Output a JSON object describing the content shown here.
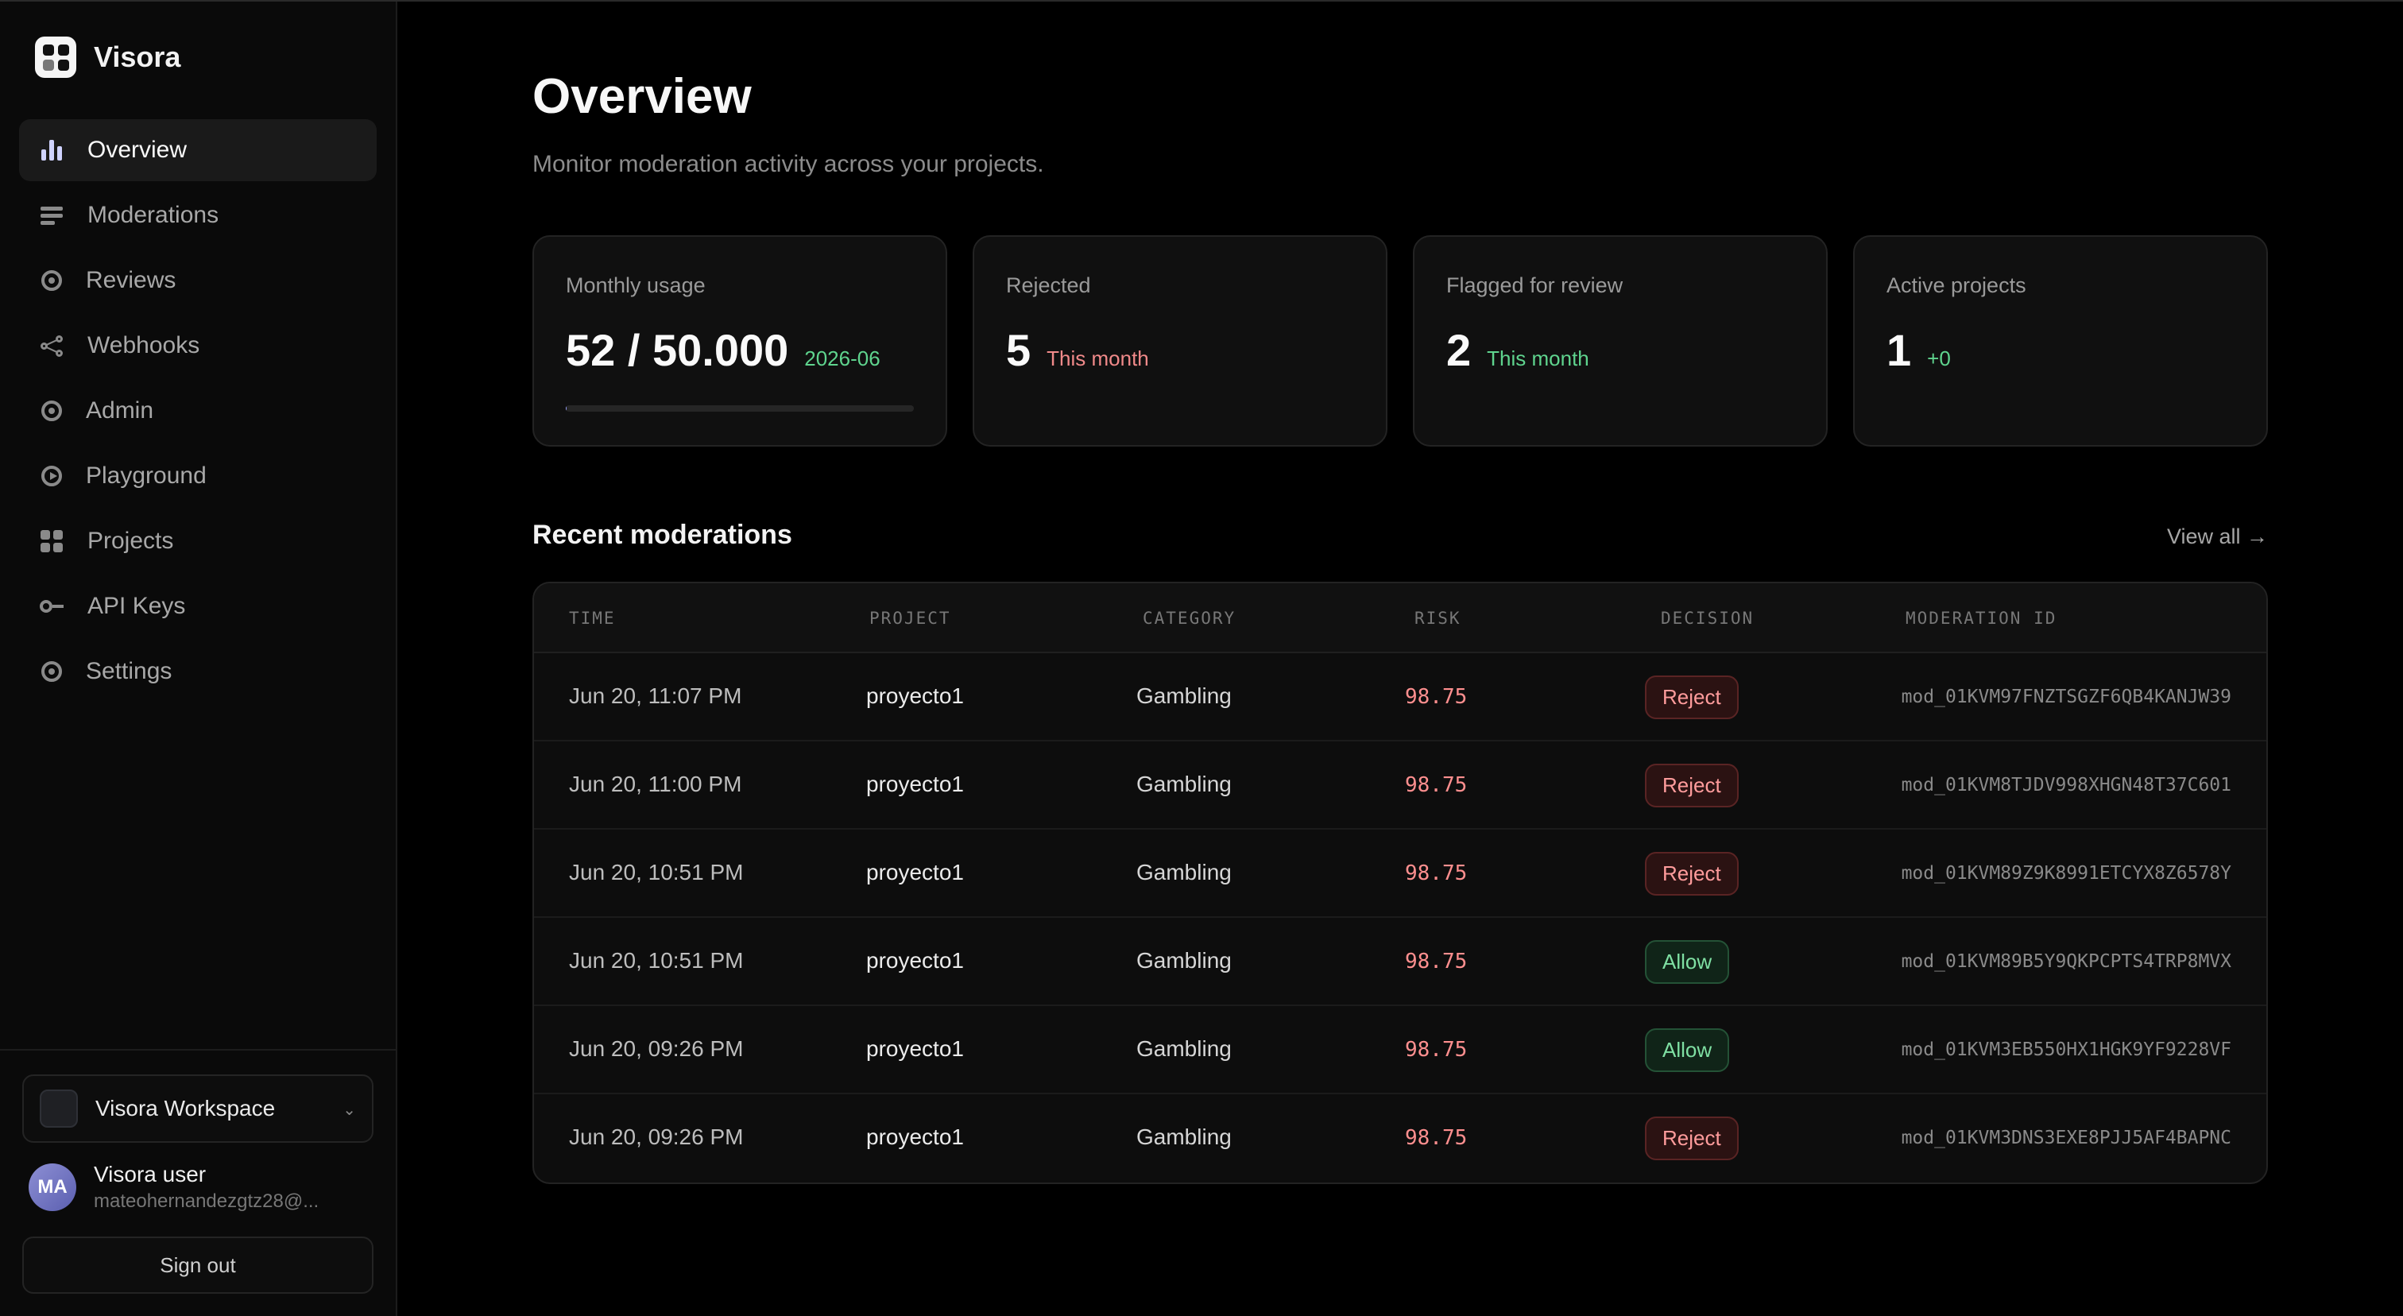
{
  "app": {
    "name": "Visora"
  },
  "sidebar": {
    "items": [
      {
        "label": "Overview",
        "icon": "bar-chart-icon",
        "active": true
      },
      {
        "label": "Moderations",
        "icon": "list-icon"
      },
      {
        "label": "Reviews",
        "icon": "target-icon"
      },
      {
        "label": "Webhooks",
        "icon": "share-icon"
      },
      {
        "label": "Admin",
        "icon": "target-icon"
      },
      {
        "label": "Playground",
        "icon": "play-icon"
      },
      {
        "label": "Projects",
        "icon": "grid-icon"
      },
      {
        "label": "API Keys",
        "icon": "key-icon"
      },
      {
        "label": "Settings",
        "icon": "target-icon"
      }
    ],
    "workspace": {
      "name": "Visora Workspace"
    },
    "user": {
      "initials": "MA",
      "name": "Visora user",
      "email": "mateohernandezgtz28@..."
    },
    "sign_out_label": "Sign out"
  },
  "header": {
    "title": "Overview",
    "subtitle": "Monitor moderation activity across your projects."
  },
  "cards": {
    "usage": {
      "label": "Monthly usage",
      "value": "52 / 50.000",
      "note": "2026-06",
      "progress_fraction": 0.00104
    },
    "rejected": {
      "label": "Rejected",
      "value": "5",
      "note": "This month"
    },
    "flagged": {
      "label": "Flagged for review",
      "value": "2",
      "note": "This month"
    },
    "projects": {
      "label": "Active projects",
      "value": "1",
      "note": "+0"
    }
  },
  "recent": {
    "title": "Recent moderations",
    "view_all_label": "View all →",
    "columns": [
      "TIME",
      "PROJECT",
      "CATEGORY",
      "RISK",
      "DECISION",
      "MODERATION ID"
    ],
    "rows": [
      {
        "time": "Jun 20, 11:07 PM",
        "project": "proyecto1",
        "category": "Gambling",
        "risk": "98.75",
        "decision": "Reject",
        "id": "mod_01KVM97FNZTSGZF6QB4KANJW39"
      },
      {
        "time": "Jun 20, 11:00 PM",
        "project": "proyecto1",
        "category": "Gambling",
        "risk": "98.75",
        "decision": "Reject",
        "id": "mod_01KVM8TJDV998XHGN48T37C601"
      },
      {
        "time": "Jun 20, 10:51 PM",
        "project": "proyecto1",
        "category": "Gambling",
        "risk": "98.75",
        "decision": "Reject",
        "id": "mod_01KVM89Z9K8991ETCYX8Z6578Y"
      },
      {
        "time": "Jun 20, 10:51 PM",
        "project": "proyecto1",
        "category": "Gambling",
        "risk": "98.75",
        "decision": "Allow",
        "id": "mod_01KVM89B5Y9QKPCPTS4TRP8MVX"
      },
      {
        "time": "Jun 20, 09:26 PM",
        "project": "proyecto1",
        "category": "Gambling",
        "risk": "98.75",
        "decision": "Allow",
        "id": "mod_01KVM3EB550HX1HGK9YF9228VF"
      },
      {
        "time": "Jun 20, 09:26 PM",
        "project": "proyecto1",
        "category": "Gambling",
        "risk": "98.75",
        "decision": "Reject",
        "id": "mod_01KVM3DNS3EXE8PJJ5AF4BAPNC"
      }
    ]
  },
  "colors": {
    "accent": "#9aa0ff",
    "positive": "#5fd48e",
    "negative": "#f18a8a"
  }
}
